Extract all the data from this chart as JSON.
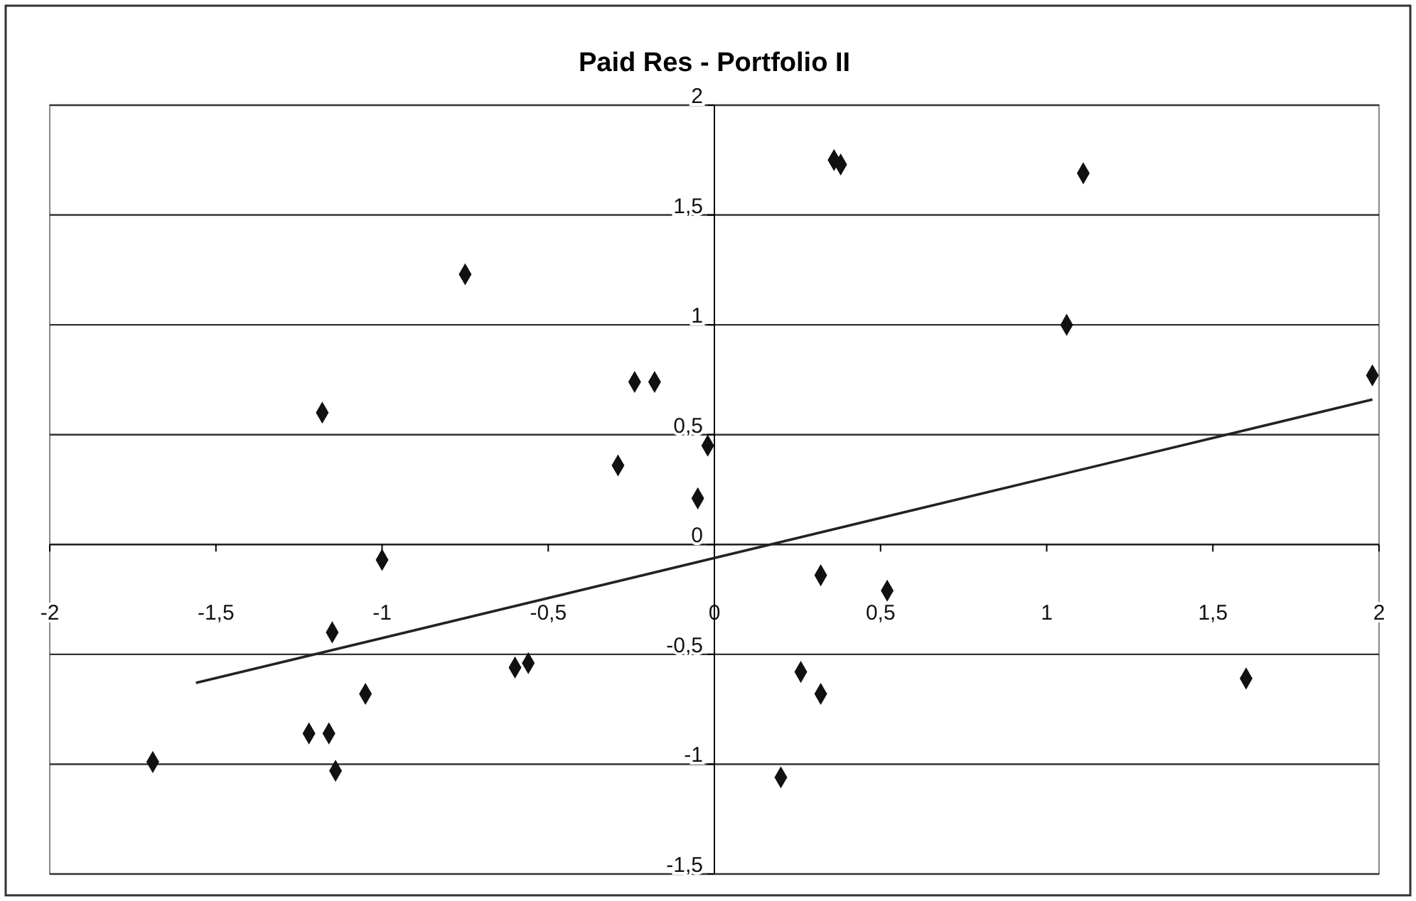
{
  "chart_data": {
    "type": "scatter",
    "title": "Paid Res - Portfolio II",
    "xlim": [
      -2,
      2
    ],
    "ylim": [
      -1.5,
      2
    ],
    "xticks": [
      -2,
      {
        "value": -1.5,
        "label": "-1,5"
      },
      -1,
      {
        "value": -0.5,
        "label": "-0,5"
      },
      0,
      {
        "value": 0.5,
        "label": "0,5"
      },
      1,
      {
        "value": 1.5,
        "label": "1,5"
      },
      2
    ],
    "yticks": [
      {
        "value": -1.5,
        "label": "-1,5"
      },
      -1,
      {
        "value": -0.5,
        "label": "-0,5"
      },
      0,
      {
        "value": 0.5,
        "label": "0,5"
      },
      1,
      {
        "value": 1.5,
        "label": "1,5"
      },
      2
    ],
    "grid": "y",
    "marker": "diamond",
    "series": [
      {
        "color": "#111111",
        "x": [
          -1.69,
          -1.22,
          -1.16,
          -1.14,
          -1.15,
          -1.18,
          -1.05,
          -1.0,
          -0.75,
          -0.6,
          -0.56,
          -0.29,
          -0.24,
          -0.18,
          -0.05,
          -0.02,
          0.2,
          0.26,
          0.32,
          0.32,
          0.36,
          0.38,
          0.52,
          1.06,
          1.11,
          1.6,
          1.98
        ],
        "values": [
          -0.99,
          -0.86,
          -0.86,
          -1.03,
          -0.4,
          0.6,
          -0.68,
          -0.07,
          1.23,
          -0.56,
          -0.54,
          0.36,
          0.74,
          0.74,
          0.21,
          0.45,
          -1.06,
          -0.58,
          -0.68,
          -0.14,
          1.75,
          1.73,
          -0.21,
          1.0,
          1.69,
          -0.61,
          0.77
        ]
      },
      {
        "type": "line",
        "marker": "none",
        "color": "#222222",
        "x": [
          -1.56,
          1.98
        ],
        "values": [
          -0.63,
          0.66
        ]
      }
    ]
  }
}
